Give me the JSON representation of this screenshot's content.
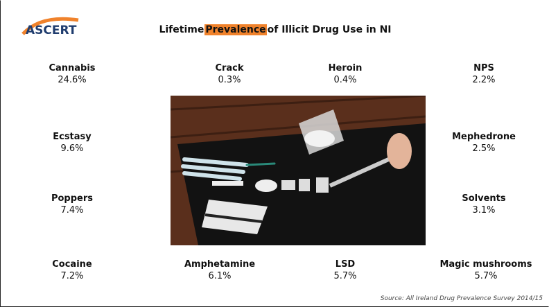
{
  "header": {
    "logo": "ASCERT",
    "title_before": "Lifetime",
    "title_highlight": "Prevalence",
    "title_after": "of Illicit Drug Use in NI"
  },
  "items": [
    {
      "label": "Cannabis",
      "value": "24.6%"
    },
    {
      "label": "Crack",
      "value": "0.3%"
    },
    {
      "label": "Heroin",
      "value": "0.4%"
    },
    {
      "label": "NPS",
      "value": "2.2%"
    },
    {
      "label": "Ecstasy",
      "value": "9.6%"
    },
    {
      "label": "Mephedrone",
      "value": "2.5%"
    },
    {
      "label": "Poppers",
      "value": "7.4%"
    },
    {
      "label": "Solvents",
      "value": "3.1%"
    },
    {
      "label": "Cocaine",
      "value": "7.2%"
    },
    {
      "label": "Amphetamine",
      "value": "6.1%"
    },
    {
      "label": "LSD",
      "value": "5.7%"
    },
    {
      "label": "Magic mushrooms",
      "value": "5.7%"
    }
  ],
  "source": "Source: All Ireland Drug Prevalence Survey 2014/15"
}
